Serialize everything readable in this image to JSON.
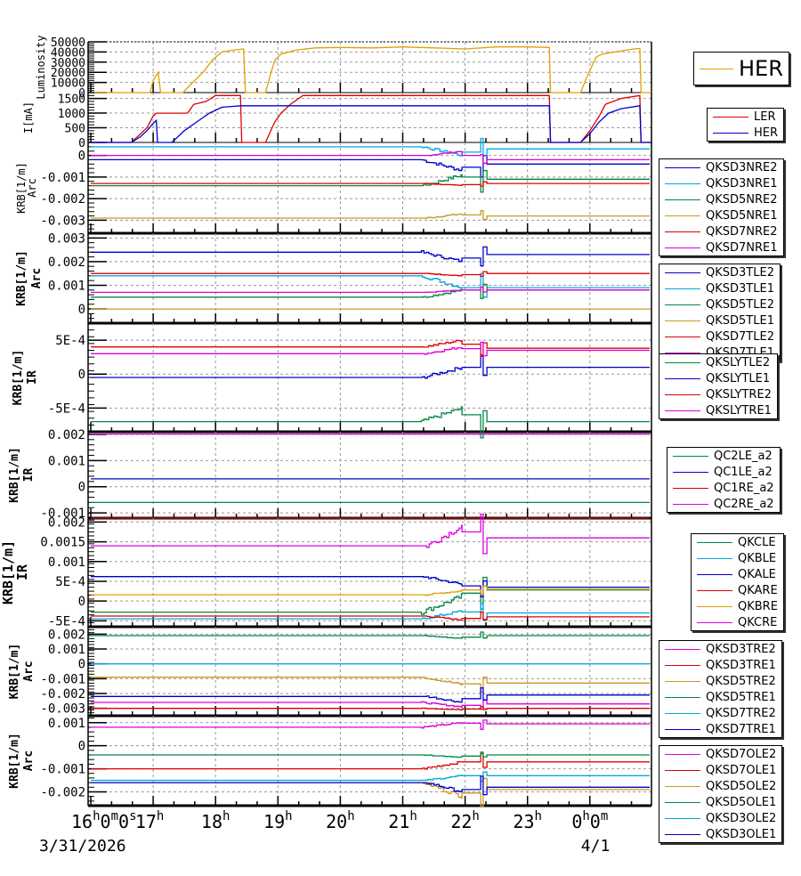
{
  "chart_data": {
    "type": "line",
    "x_axis": {
      "tick_labels": [
        {
          "t": 16,
          "label": "16",
          "sup": "h",
          "extra": "0",
          "extra_sup": "m",
          "extra2": "0",
          "extra2_sup": "s"
        },
        {
          "t": 17,
          "label": "17",
          "sup": "h"
        },
        {
          "t": 18,
          "label": "18",
          "sup": "h"
        },
        {
          "t": 19,
          "label": "19",
          "sup": "h"
        },
        {
          "t": 20,
          "label": "20",
          "sup": "h"
        },
        {
          "t": 21,
          "label": "21",
          "sup": "h"
        },
        {
          "t": 22,
          "label": "22",
          "sup": "h"
        },
        {
          "t": 23,
          "label": "23",
          "sup": "h"
        },
        {
          "t": 24,
          "label": "0",
          "sup": "h",
          "extra": "0",
          "extra_sup": "m"
        }
      ],
      "date_labels": [
        {
          "t": 16,
          "label": "3/31/2026"
        },
        {
          "t": 24,
          "label": "4/1"
        }
      ],
      "range_hours": [
        16,
        25
      ]
    },
    "panels": [
      {
        "id": "luminosity",
        "ylabel": [
          "Luminosity"
        ],
        "ylim": [
          0,
          50000
        ],
        "yticks": [
          0,
          10000,
          20000,
          30000,
          40000,
          50000
        ],
        "ytick_labels": [
          "0",
          "10000",
          "20000",
          "30000",
          "40000",
          "50000"
        ],
        "legend": "big",
        "series": [
          {
            "name": "HER",
            "color": "#e0a000",
            "points": [
              [
                16,
                0
              ],
              [
                16.95,
                0
              ],
              [
                17.0,
                12000
              ],
              [
                17.05,
                17000
              ],
              [
                17.08,
                20000
              ],
              [
                17.1,
                10000
              ],
              [
                17.12,
                0
              ],
              [
                17.48,
                0
              ],
              [
                17.6,
                8000
              ],
              [
                17.8,
                20000
              ],
              [
                17.95,
                32000
              ],
              [
                18.1,
                40000
              ],
              [
                18.3,
                42000
              ],
              [
                18.45,
                43000
              ],
              [
                18.48,
                0
              ],
              [
                18.8,
                0
              ],
              [
                18.88,
                18000
              ],
              [
                18.95,
                32000
              ],
              [
                19.05,
                38000
              ],
              [
                19.3,
                42000
              ],
              [
                19.6,
                44000
              ],
              [
                20.0,
                44500
              ],
              [
                20.5,
                44000
              ],
              [
                21.0,
                45000
              ],
              [
                21.5,
                44000
              ],
              [
                22.0,
                43000
              ],
              [
                22.5,
                45000
              ],
              [
                23.0,
                45000
              ],
              [
                23.35,
                44500
              ],
              [
                23.37,
                0
              ],
              [
                23.85,
                0
              ],
              [
                23.95,
                15000
              ],
              [
                24.1,
                35000
              ],
              [
                24.2,
                38000
              ],
              [
                24.4,
                40000
              ],
              [
                24.7,
                43000
              ],
              [
                24.8,
                43500
              ],
              [
                24.82,
                0
              ],
              [
                25,
                0
              ]
            ]
          }
        ]
      },
      {
        "id": "current",
        "ylabel": [
          "I[mA]"
        ],
        "ylim": [
          0,
          1700
        ],
        "yticks": [
          0,
          500,
          1000,
          1500
        ],
        "ytick_labels": [
          "0",
          "500",
          "1000",
          "1500"
        ],
        "legend": "small",
        "series": [
          {
            "name": "LER",
            "color": "#dd0000",
            "points": [
              [
                16,
                0
              ],
              [
                16.65,
                0
              ],
              [
                16.8,
                300
              ],
              [
                16.9,
                500
              ],
              [
                17.0,
                900
              ],
              [
                17.05,
                1000
              ],
              [
                17.55,
                1000
              ],
              [
                17.65,
                1300
              ],
              [
                17.85,
                1400
              ],
              [
                18.0,
                1600
              ],
              [
                18.4,
                1600
              ],
              [
                18.42,
                0
              ],
              [
                18.8,
                0
              ],
              [
                18.95,
                700
              ],
              [
                19.05,
                1000
              ],
              [
                19.2,
                1300
              ],
              [
                19.4,
                1600
              ],
              [
                23.35,
                1600
              ],
              [
                23.37,
                0
              ],
              [
                23.85,
                0
              ],
              [
                24.0,
                400
              ],
              [
                24.15,
                900
              ],
              [
                24.25,
                1300
              ],
              [
                24.5,
                1500
              ],
              [
                24.8,
                1600
              ],
              [
                24.82,
                0
              ],
              [
                25,
                0
              ]
            ]
          },
          {
            "name": "HER",
            "color": "#0000cc",
            "points": [
              [
                16,
                0
              ],
              [
                16.65,
                0
              ],
              [
                16.8,
                200
              ],
              [
                16.9,
                400
              ],
              [
                17.0,
                650
              ],
              [
                17.05,
                750
              ],
              [
                17.07,
                0
              ],
              [
                17.3,
                0
              ],
              [
                17.5,
                400
              ],
              [
                17.7,
                700
              ],
              [
                17.9,
                1000
              ],
              [
                18.1,
                1200
              ],
              [
                18.4,
                1250
              ],
              [
                23.35,
                1250
              ],
              [
                23.37,
                0
              ],
              [
                23.85,
                0
              ],
              [
                24.0,
                300
              ],
              [
                24.15,
                700
              ],
              [
                24.3,
                1000
              ],
              [
                24.5,
                1150
              ],
              [
                24.8,
                1250
              ],
              [
                24.82,
                0
              ],
              [
                25,
                0
              ]
            ]
          }
        ]
      },
      {
        "id": "arc1",
        "ylabel": [
          "KRB[1/m]",
          "Arc"
        ],
        "ylim": [
          -0.0036,
          0.0006
        ],
        "yticks": [
          -0.003,
          -0.002,
          -0.001,
          0
        ],
        "ytick_labels": [
          "-0.003",
          "-0.002",
          "-0.001",
          "0"
        ],
        "series": [
          {
            "name": "QKSD3NRE2",
            "color": "#0000cc",
            "base": -0.0002,
            "end": -0.0004,
            "dev": -0.0005
          },
          {
            "name": "QKSD3NRE1",
            "color": "#00aadd",
            "base": 0.0004,
            "end": 0.0003,
            "dev": -0.0004
          },
          {
            "name": "QKSD5NRE2",
            "color": "#008844",
            "base": -0.0014,
            "end": -0.0011,
            "dev": 0.0005
          },
          {
            "name": "QKSD5NRE1",
            "color": "#cc9922",
            "base": -0.0029,
            "end": -0.0028,
            "dev": 0.0002
          },
          {
            "name": "QKSD7NRE2",
            "color": "#dd0000",
            "base": -0.0013,
            "end": -0.0013,
            "dev": -0.0001
          },
          {
            "name": "QKSD7NRE1",
            "color": "#dd00dd",
            "base": 0.0,
            "end": -0.0002,
            "dev": 0.0002
          }
        ]
      },
      {
        "id": "arc2",
        "ylabel": [
          "KRB[1/m]",
          "Arc"
        ],
        "ylim": [
          -0.0006,
          0.0032
        ],
        "yticks": [
          0,
          0.001,
          0.002,
          0.003
        ],
        "ytick_labels": [
          "0",
          "0.001",
          "0.002",
          "0.003"
        ],
        "series": [
          {
            "name": "QKSD3TLE2",
            "color": "#0000cc",
            "base": 0.0024,
            "end": 0.0023,
            "dev": -0.0004
          },
          {
            "name": "QKSD3TLE1",
            "color": "#00aadd",
            "base": 0.0014,
            "end": 0.0009,
            "dev": -0.0005
          },
          {
            "name": "QKSD5TLE2",
            "color": "#008844",
            "base": 0.0005,
            "end": 0.0008,
            "dev": 0.0003
          },
          {
            "name": "QKSD5TLE1",
            "color": "#cc9922",
            "base": 0.0,
            "end": 0.0,
            "dev": 0.0
          },
          {
            "name": "QKSD7TLE2",
            "color": "#dd0000",
            "base": 0.0015,
            "end": 0.0015,
            "dev": -0.0001
          },
          {
            "name": "QKSD7TLE1",
            "color": "#dd00dd",
            "base": 0.0007,
            "end": 0.0008,
            "dev": 0.0001
          }
        ]
      },
      {
        "id": "ir1",
        "ylabel": [
          "KRB[1/m]",
          "IR"
        ],
        "ylim": [
          -0.00085,
          0.00075
        ],
        "yticks": [
          -0.0005,
          0,
          0.0005
        ],
        "ytick_labels": [
          "-5E-4",
          "0",
          "5E-4"
        ],
        "series": [
          {
            "name": "QKSLYTLE2",
            "color": "#008844",
            "base": -0.0007,
            "end": -0.0007,
            "dev": 0.0002
          },
          {
            "name": "QKSLYTLE1",
            "color": "#0000cc",
            "base": -5e-05,
            "end": 0.0001,
            "dev": 0.00015
          },
          {
            "name": "QKSLYTRE2",
            "color": "#dd0000",
            "base": 0.0004,
            "end": 0.00038,
            "dev": 0.0001
          },
          {
            "name": "QKSLYTRE1",
            "color": "#dd00dd",
            "base": 0.0003,
            "end": 0.00035,
            "dev": 0.0001
          }
        ]
      },
      {
        "id": "ir2",
        "ylabel": [
          "KRB[1/m]",
          "IR"
        ],
        "ylim": [
          -0.0012,
          0.0021
        ],
        "yticks": [
          -0.001,
          0,
          0.001,
          0.002
        ],
        "ytick_labels": [
          "-0.001",
          "0",
          "0.001",
          "0.002"
        ],
        "series": [
          {
            "name": "QC2LE_a2",
            "color": "#008844",
            "base": -0.0006,
            "end": -0.0006,
            "dev": 0
          },
          {
            "name": "QC1LE_a2",
            "color": "#0000cc",
            "base": 0.0003,
            "end": 0.0003,
            "dev": 0
          },
          {
            "name": "QC1RE_a2",
            "color": "#dd0000",
            "base": -0.0012,
            "end": -0.0012,
            "dev": 0
          },
          {
            "name": "QC2RE_a2",
            "color": "#dd00dd",
            "base": 0.00201,
            "end": 0.00201,
            "dev": 0
          }
        ]
      },
      {
        "id": "ir3",
        "ylabel": [
          "KRB[1/m]",
          "IR"
        ],
        "ylim": [
          -0.00065,
          0.0021
        ],
        "yticks": [
          -0.0005,
          0,
          0.0005,
          0.001,
          0.0015,
          0.002
        ],
        "ytick_labels": [
          "-5E-4",
          "0",
          "5E-4",
          "0.001",
          "0.0015",
          "0.002"
        ],
        "series": [
          {
            "name": "QKCLE",
            "color": "#008844",
            "base": -0.00028,
            "end": 0.00028,
            "dev": 0.0004
          },
          {
            "name": "QKBLE",
            "color": "#00aadd",
            "base": -0.00045,
            "end": -0.0003,
            "dev": 0.0002
          },
          {
            "name": "QKALE",
            "color": "#0000cc",
            "base": 0.00062,
            "end": 0.00035,
            "dev": -0.0002
          },
          {
            "name": "QKARE",
            "color": "#dd0000",
            "base": -0.00038,
            "end": -0.0004,
            "dev": -0.0001
          },
          {
            "name": "QKBRE",
            "color": "#e0a000",
            "base": 0.00016,
            "end": 0.0003,
            "dev": 0.0001
          },
          {
            "name": "QKCRE",
            "color": "#dd00dd",
            "base": 0.0014,
            "end": 0.0016,
            "dev": 0.0005
          }
        ]
      },
      {
        "id": "arc3",
        "ylabel": [
          "KRB[1/m]",
          "Arc"
        ],
        "ylim": [
          -0.0035,
          0.0025
        ],
        "yticks": [
          -0.003,
          -0.002,
          -0.001,
          0,
          0.001,
          0.002
        ],
        "ytick_labels": [
          "-0.003",
          "-0.002",
          "-0.001",
          "0",
          "0.001",
          "0.002"
        ],
        "series": [
          {
            "name": "QKSD3TRE2",
            "color": "#dd00dd",
            "base": -0.0026,
            "end": -0.0027,
            "dev": -0.0003
          },
          {
            "name": "QKSD3TRE1",
            "color": "#dd0000",
            "base": -0.003,
            "end": -0.003,
            "dev": -0.0001
          },
          {
            "name": "QKSD5TRE2",
            "color": "#cc9922",
            "base": -0.0009,
            "end": -0.0013,
            "dev": -0.0005
          },
          {
            "name": "QKSD5TRE1",
            "color": "#008844",
            "base": 0.0019,
            "end": 0.0019,
            "dev": -0.0002
          },
          {
            "name": "QKSD7TRE2",
            "color": "#00aadd",
            "base": 0.0,
            "end": 0.0,
            "dev": 0.0
          },
          {
            "name": "QKSD7TRE1",
            "color": "#0000cc",
            "base": -0.0022,
            "end": -0.0021,
            "dev": -0.0004
          }
        ]
      },
      {
        "id": "arc4",
        "ylabel": [
          "KRB[1/m]",
          "Arc"
        ],
        "ylim": [
          -0.0026,
          0.0013
        ],
        "yticks": [
          -0.002,
          -0.001,
          0,
          0.001
        ],
        "ytick_labels": [
          "-0.002",
          "-0.001",
          "0",
          "0.001"
        ],
        "series": [
          {
            "name": "QKSD7OLE2",
            "color": "#dd00dd",
            "base": 0.0008,
            "end": 0.00095,
            "dev": 0.0002
          },
          {
            "name": "QKSD7OLE1",
            "color": "#dd0000",
            "base": -0.001,
            "end": -0.0007,
            "dev": 0.0003
          },
          {
            "name": "QKSD5OLE2",
            "color": "#cc9922",
            "base": -0.0016,
            "end": -0.0019,
            "dev": -0.0006
          },
          {
            "name": "QKSD5OLE1",
            "color": "#008844",
            "base": -0.0004,
            "end": -0.0004,
            "dev": -0.0001
          },
          {
            "name": "QKSD3OLE2",
            "color": "#00aadd",
            "base": -0.0015,
            "end": -0.0013,
            "dev": 0.0002
          },
          {
            "name": "QKSD3OLE1",
            "color": "#0000cc",
            "base": -0.0016,
            "end": -0.0018,
            "dev": -0.0004
          }
        ]
      }
    ]
  },
  "legends": {
    "luminosity": [
      "HER"
    ],
    "current": [
      "LER",
      "HER"
    ],
    "arc1": [
      "QKSD3NRE2",
      "QKSD3NRE1",
      "QKSD5NRE2",
      "QKSD5NRE1",
      "QKSD7NRE2",
      "QKSD7NRE1"
    ],
    "arc2": [
      "QKSD3TLE2",
      "QKSD3TLE1",
      "QKSD5TLE2",
      "QKSD5TLE1",
      "QKSD7TLE2",
      "QKSD7TLE1"
    ],
    "ir1": [
      "QKSLYTLE2",
      "QKSLYTLE1",
      "QKSLYTRE2",
      "QKSLYTRE1"
    ],
    "ir2": [
      "QC2LE_a2",
      "QC1LE_a2",
      "QC1RE_a2",
      "QC2RE_a2"
    ],
    "ir3": [
      "QKCLE",
      "QKBLE",
      "QKALE",
      "QKARE",
      "QKBRE",
      "QKCRE"
    ],
    "arc3": [
      "QKSD3TRE2",
      "QKSD3TRE1",
      "QKSD5TRE2",
      "QKSD5TRE1",
      "QKSD7TRE2",
      "QKSD7TRE1"
    ],
    "arc4": [
      "QKSD7OLE2",
      "QKSD7OLE1",
      "QKSD5OLE2",
      "QKSD5OLE1",
      "QKSD3OLE2",
      "QKSD3OLE1"
    ]
  }
}
